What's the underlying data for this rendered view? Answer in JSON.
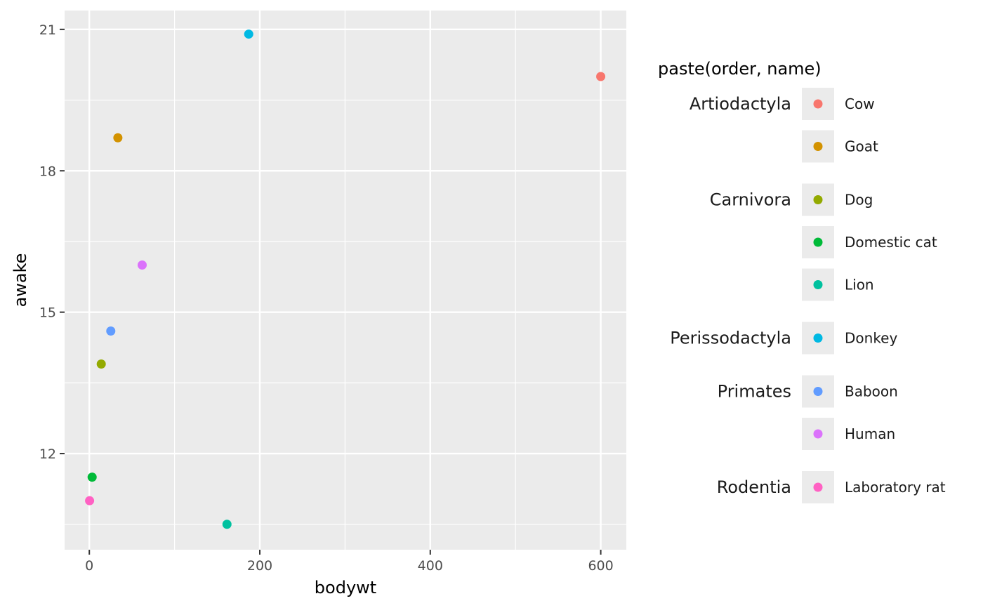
{
  "chart_data": {
    "type": "scatter",
    "xlabel": "bodywt",
    "ylabel": "awake",
    "xlim": [
      -29,
      630
    ],
    "ylim": [
      9.96,
      21.4
    ],
    "x_ticks": [
      0,
      200,
      400,
      600
    ],
    "x_tick_labels": [
      "0",
      "200",
      "400",
      "600"
    ],
    "x_minor_ticks": [
      100,
      300,
      500
    ],
    "y_ticks": [
      12,
      15,
      18,
      21
    ],
    "y_tick_labels": [
      "12",
      "15",
      "18",
      "21"
    ],
    "y_minor_ticks": [
      10.5,
      13.5,
      16.5,
      19.5
    ],
    "grid": true,
    "legend": {
      "title": "paste(order, name)",
      "placement": "right",
      "groups": [
        {
          "order": "Artiodactyla",
          "items": [
            {
              "name": "Cow",
              "color": "#F8766D"
            },
            {
              "name": "Goat",
              "color": "#D39200"
            }
          ]
        },
        {
          "order": "Carnivora",
          "items": [
            {
              "name": "Dog",
              "color": "#93AA00"
            },
            {
              "name": "Domestic cat",
              "color": "#00BA38"
            },
            {
              "name": "Lion",
              "color": "#00C19F"
            }
          ]
        },
        {
          "order": "Perissodactyla",
          "items": [
            {
              "name": "Donkey",
              "color": "#00B9E3"
            }
          ]
        },
        {
          "order": "Primates",
          "items": [
            {
              "name": "Baboon",
              "color": "#619CFF"
            },
            {
              "name": "Human",
              "color": "#DB72FB"
            }
          ]
        },
        {
          "order": "Rodentia",
          "items": [
            {
              "name": "Laboratory rat",
              "color": "#FF61C3"
            }
          ]
        }
      ]
    },
    "points": [
      {
        "series": "Artiodactyla Cow",
        "x": 600,
        "y": 20.0,
        "color": "#F8766D"
      },
      {
        "series": "Artiodactyla Goat",
        "x": 33.5,
        "y": 18.7,
        "color": "#D39200"
      },
      {
        "series": "Carnivora Dog",
        "x": 14,
        "y": 13.9,
        "color": "#93AA00"
      },
      {
        "series": "Carnivora Domestic cat",
        "x": 3.3,
        "y": 11.5,
        "color": "#00BA38"
      },
      {
        "series": "Carnivora Lion",
        "x": 161.5,
        "y": 10.5,
        "color": "#00C19F"
      },
      {
        "series": "Perissodactyla Donkey",
        "x": 187,
        "y": 20.9,
        "color": "#00B9E3"
      },
      {
        "series": "Primates Baboon",
        "x": 25.2,
        "y": 14.6,
        "color": "#619CFF"
      },
      {
        "series": "Primates Human",
        "x": 62,
        "y": 16.0,
        "color": "#DB72FB"
      },
      {
        "series": "Rodentia Laboratory rat",
        "x": 0.32,
        "y": 11.0,
        "color": "#FF61C3"
      }
    ]
  }
}
